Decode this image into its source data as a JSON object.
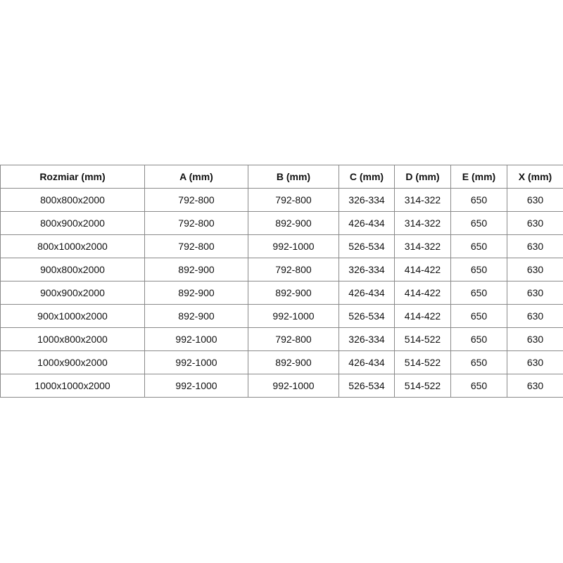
{
  "table": {
    "headers": [
      "Rozmiar (mm)",
      "A (mm)",
      "B (mm)",
      "C (mm)",
      "D (mm)",
      "E (mm)",
      "X (mm)"
    ],
    "rows": [
      [
        "800x800x2000",
        "792-800",
        "792-800",
        "326-334",
        "314-322",
        "650",
        "630"
      ],
      [
        "800x900x2000",
        "792-800",
        "892-900",
        "426-434",
        "314-322",
        "650",
        "630"
      ],
      [
        "800x1000x2000",
        "792-800",
        "992-1000",
        "526-534",
        "314-322",
        "650",
        "630"
      ],
      [
        "900x800x2000",
        "892-900",
        "792-800",
        "326-334",
        "414-422",
        "650",
        "630"
      ],
      [
        "900x900x2000",
        "892-900",
        "892-900",
        "426-434",
        "414-422",
        "650",
        "630"
      ],
      [
        "900x1000x2000",
        "892-900",
        "992-1000",
        "526-534",
        "414-422",
        "650",
        "630"
      ],
      [
        "1000x800x2000",
        "992-1000",
        "792-800",
        "326-334",
        "514-522",
        "650",
        "630"
      ],
      [
        "1000x900x2000",
        "992-1000",
        "892-900",
        "426-434",
        "514-522",
        "650",
        "630"
      ],
      [
        "1000x1000x2000",
        "992-1000",
        "992-1000",
        "526-534",
        "514-522",
        "650",
        "630"
      ]
    ]
  }
}
